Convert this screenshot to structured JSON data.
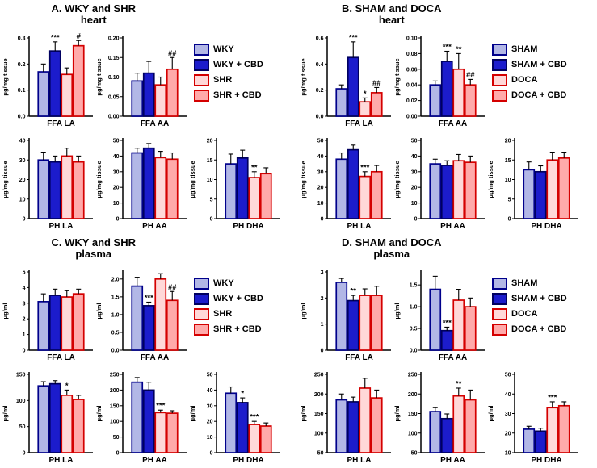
{
  "figure": {
    "background": "#ffffff"
  },
  "colors": {
    "axis": "#000000",
    "groups": [
      {
        "name": "control",
        "fill": "#b2b7e6",
        "stroke": "#00008b"
      },
      {
        "name": "control-cbd",
        "fill": "#1c1ccc",
        "stroke": "#000060"
      },
      {
        "name": "hypertensive",
        "fill": "#ffd8d8",
        "stroke": "#d40000"
      },
      {
        "name": "hypertensive-cbd",
        "fill": "#ffaaaa",
        "stroke": "#d40000"
      }
    ]
  },
  "chart_data": {
    "type": "bar",
    "panels": [
      {
        "id": "A",
        "title": "A. WKY and SHR",
        "subtitle": "heart",
        "legend": [
          "WKY",
          "WKY + CBD",
          "SHR",
          "SHR + CBD"
        ],
        "rows": [
          [
            {
              "xlabel": "FFA LA",
              "ylabel": "μg/mg tissue",
              "ymin": 0,
              "ymax": 0.3,
              "yticks": [
                "0.0",
                "0.1",
                "0.2",
                "0.3"
              ],
              "values": [
                0.17,
                0.25,
                0.16,
                0.27
              ],
              "errors": [
                0.03,
                0.035,
                0.025,
                0.02
              ],
              "sig": [
                "",
                "***",
                "",
                "#"
              ]
            },
            {
              "xlabel": "FFA AA",
              "ylabel": "μg/mg tissue",
              "ymin": 0,
              "ymax": 0.2,
              "yticks": [
                "0.00",
                "0.05",
                "0.10",
                "0.15",
                "0.20"
              ],
              "values": [
                0.09,
                0.11,
                0.08,
                0.12
              ],
              "errors": [
                0.02,
                0.03,
                0.02,
                0.03
              ],
              "sig": [
                "",
                "",
                "",
                "##"
              ]
            }
          ],
          [
            {
              "xlabel": "PH LA",
              "ylabel": "μg/mg tissue",
              "ymin": 0,
              "ymax": 40,
              "yticks": [
                "0",
                "10",
                "20",
                "30",
                "40"
              ],
              "values": [
                30,
                29,
                32,
                29
              ],
              "errors": [
                4,
                3,
                4,
                3
              ],
              "sig": [
                "",
                "",
                "",
                ""
              ]
            },
            {
              "xlabel": "PH AA",
              "ylabel": "μg/mg tissue",
              "ymin": 0,
              "ymax": 50,
              "yticks": [
                "0",
                "10",
                "20",
                "30",
                "40",
                "50"
              ],
              "values": [
                42,
                45,
                39,
                38
              ],
              "errors": [
                3,
                3,
                4,
                4
              ],
              "sig": [
                "",
                "",
                "",
                ""
              ]
            },
            {
              "xlabel": "PH DHA",
              "ylabel": "μg/mg tissue",
              "ymin": 0,
              "ymax": 20,
              "yticks": [
                "0",
                "5",
                "10",
                "15",
                "20"
              ],
              "values": [
                14,
                15.5,
                10.5,
                11.5
              ],
              "errors": [
                2.5,
                2,
                1.5,
                1.5
              ],
              "sig": [
                "",
                "",
                "**",
                ""
              ]
            }
          ]
        ]
      },
      {
        "id": "B",
        "title": "B. SHAM and DOCA",
        "subtitle": "heart",
        "legend": [
          "SHAM",
          "SHAM + CBD",
          "DOCA",
          "DOCA + CBD"
        ],
        "rows": [
          [
            {
              "xlabel": "FFA LA",
              "ylabel": "μg/mg tissue",
              "ymin": 0,
              "ymax": 0.6,
              "yticks": [
                "0.0",
                "0.2",
                "0.4",
                "0.6"
              ],
              "values": [
                0.21,
                0.45,
                0.11,
                0.18
              ],
              "errors": [
                0.03,
                0.12,
                0.03,
                0.04
              ],
              "sig": [
                "",
                "***",
                "*",
                "##"
              ]
            },
            {
              "xlabel": "FFA AA",
              "ylabel": "μg/mg tissue",
              "ymin": 0,
              "ymax": 0.1,
              "yticks": [
                "0.00",
                "0.02",
                "0.04",
                "0.06",
                "0.08",
                "0.10"
              ],
              "values": [
                0.04,
                0.07,
                0.06,
                0.04
              ],
              "errors": [
                0.005,
                0.013,
                0.02,
                0.007
              ],
              "sig": [
                "",
                "***",
                "**",
                "##"
              ]
            }
          ],
          [
            {
              "xlabel": "PH LA",
              "ylabel": "μg/mg tissue",
              "ymin": 0,
              "ymax": 50,
              "yticks": [
                "0",
                "10",
                "20",
                "30",
                "40",
                "50"
              ],
              "values": [
                38,
                44,
                27,
                30
              ],
              "errors": [
                4,
                3,
                3,
                4
              ],
              "sig": [
                "",
                "",
                "***",
                ""
              ]
            },
            {
              "xlabel": "PH AA",
              "ylabel": "μg/mg tissue",
              "ymin": 0,
              "ymax": 50,
              "yticks": [
                "0",
                "10",
                "20",
                "30",
                "40",
                "50"
              ],
              "values": [
                35,
                34,
                37,
                36
              ],
              "errors": [
                3,
                3,
                4,
                4
              ],
              "sig": [
                "",
                "",
                "",
                ""
              ]
            },
            {
              "xlabel": "PH DHA",
              "ylabel": "μg/mg tissue",
              "ymin": 0,
              "ymax": 20,
              "yticks": [
                "0",
                "5",
                "10",
                "15",
                "20"
              ],
              "values": [
                12.5,
                12,
                15,
                15.5
              ],
              "errors": [
                2,
                1.5,
                2,
                1.5
              ],
              "sig": [
                "",
                "",
                "",
                ""
              ]
            }
          ]
        ]
      },
      {
        "id": "C",
        "title": "C. WKY and SHR",
        "subtitle": "plasma",
        "legend": [
          "WKY",
          "WKY + CBD",
          "SHR",
          "SHR + CBD"
        ],
        "rows": [
          [
            {
              "xlabel": "FFA LA",
              "ylabel": "μg/ml",
              "ymin": 0,
              "ymax": 5,
              "yticks": [
                "0",
                "1",
                "2",
                "3",
                "4",
                "5"
              ],
              "values": [
                3.1,
                3.5,
                3.4,
                3.6
              ],
              "errors": [
                0.5,
                0.4,
                0.4,
                0.3
              ],
              "sig": [
                "",
                "",
                "",
                ""
              ]
            },
            {
              "xlabel": "FFA AA",
              "ylabel": "μg/ml",
              "ymin": 0,
              "ymax": 2.2,
              "yticks": [
                "0.0",
                "0.5",
                "1.0",
                "1.5",
                "2.0"
              ],
              "values": [
                1.8,
                1.25,
                2.0,
                1.4
              ],
              "errors": [
                0.25,
                0.1,
                0.15,
                0.25
              ],
              "sig": [
                "",
                "***",
                "",
                "##"
              ]
            }
          ],
          [
            {
              "xlabel": "PH LA",
              "ylabel": "μg/ml",
              "ymin": 0,
              "ymax": 150,
              "yticks": [
                "0",
                "50",
                "100",
                "150"
              ],
              "values": [
                128,
                132,
                110,
                102
              ],
              "errors": [
                8,
                6,
                10,
                8
              ],
              "sig": [
                "",
                "",
                "*",
                ""
              ]
            },
            {
              "xlabel": "PH AA",
              "ylabel": "μg/ml",
              "ymin": 0,
              "ymax": 250,
              "yticks": [
                "0",
                "50",
                "100",
                "150",
                "200",
                "250"
              ],
              "values": [
                225,
                200,
                128,
                126
              ],
              "errors": [
                15,
                25,
                8,
                8
              ],
              "sig": [
                "",
                "",
                "***",
                ""
              ]
            },
            {
              "xlabel": "PH DHA",
              "ylabel": "μg/ml",
              "ymin": 0,
              "ymax": 50,
              "yticks": [
                "0",
                "10",
                "20",
                "30",
                "40",
                "50"
              ],
              "values": [
                38,
                32,
                18,
                17
              ],
              "errors": [
                4,
                3,
                2,
                2
              ],
              "sig": [
                "",
                "*",
                "***",
                ""
              ]
            }
          ]
        ]
      },
      {
        "id": "D",
        "title": "D. SHAM and DOCA",
        "subtitle": "plasma",
        "legend": [
          "SHAM",
          "SHAM + CBD",
          "DOCA",
          "DOCA + CBD"
        ],
        "rows": [
          [
            {
              "xlabel": "FFA LA",
              "ylabel": "μg/ml",
              "ymin": 0,
              "ymax": 3,
              "yticks": [
                "0",
                "1",
                "2",
                "3"
              ],
              "values": [
                2.6,
                1.9,
                2.1,
                2.1
              ],
              "errors": [
                0.15,
                0.2,
                0.25,
                0.35
              ],
              "sig": [
                "",
                "**",
                "",
                ""
              ]
            },
            {
              "xlabel": "FFA AA",
              "ylabel": "μg/ml",
              "ymin": 0,
              "ymax": 1.8,
              "yticks": [
                "0.0",
                "0.5",
                "1.0",
                "1.5"
              ],
              "values": [
                1.4,
                0.45,
                1.15,
                1.0
              ],
              "errors": [
                0.3,
                0.08,
                0.25,
                0.2
              ],
              "sig": [
                "",
                "***",
                "",
                ""
              ]
            }
          ],
          [
            {
              "xlabel": "PH LA",
              "ylabel": "μg/ml",
              "ymin": 50,
              "ymax": 250,
              "yticks": [
                "50",
                "100",
                "150",
                "200",
                "250"
              ],
              "values": [
                185,
                180,
                215,
                190
              ],
              "errors": [
                15,
                12,
                25,
                20
              ],
              "sig": [
                "",
                "",
                "",
                ""
              ]
            },
            {
              "xlabel": "PH AA",
              "ylabel": "μg/ml",
              "ymin": 50,
              "ymax": 250,
              "yticks": [
                "50",
                "100",
                "150",
                "200",
                "250"
              ],
              "values": [
                155,
                137,
                195,
                185
              ],
              "errors": [
                10,
                12,
                20,
                25
              ],
              "sig": [
                "",
                "",
                "**",
                ""
              ]
            },
            {
              "xlabel": "PH DHA",
              "ylabel": "μg/ml",
              "ymin": 10,
              "ymax": 50,
              "yticks": [
                "10",
                "20",
                "30",
                "40",
                "50"
              ],
              "values": [
                22,
                21,
                33,
                34
              ],
              "errors": [
                1.5,
                1.5,
                3,
                2
              ],
              "sig": [
                "",
                "",
                "***",
                ""
              ]
            }
          ]
        ]
      }
    ]
  }
}
